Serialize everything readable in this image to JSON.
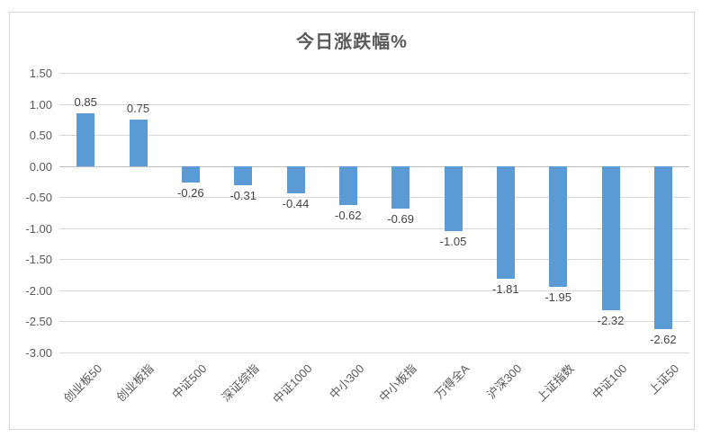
{
  "chart": {
    "title": "今日涨跌幅%"
  },
  "chart_data": {
    "type": "bar",
    "title": "今日涨跌幅%",
    "categories": [
      "创业板50",
      "创业板指",
      "中证500",
      "深证综指",
      "中证1000",
      "中小300",
      "中小板指",
      "万得全A",
      "沪深300",
      "上证指数",
      "中证100",
      "上证50"
    ],
    "values": [
      0.85,
      0.75,
      -0.26,
      -0.31,
      -0.44,
      -0.62,
      -0.69,
      -1.05,
      -1.81,
      -1.95,
      -2.32,
      -2.62
    ],
    "value_labels": [
      "0.85",
      "0.75",
      "-0.26",
      "-0.31",
      "-0.44",
      "-0.62",
      "-0.69",
      "-1.05",
      "-1.81",
      "-1.95",
      "-2.32",
      "-2.62"
    ],
    "y_ticks": [
      1.5,
      1.0,
      0.5,
      0.0,
      -0.5,
      -1.0,
      -1.5,
      -2.0,
      -2.5,
      -3.0
    ],
    "y_tick_labels": [
      "1.50",
      "1.00",
      "0.50",
      "0.00",
      "-0.50",
      "-1.00",
      "-1.50",
      "-2.00",
      "-2.50",
      "-3.00"
    ],
    "ylim": [
      -3.0,
      1.5
    ],
    "xlabel": "",
    "ylabel": "",
    "grid": true,
    "legend": false,
    "colors": {
      "bar": "#5B9BD5",
      "gridline": "#D9D9D9",
      "zero_axis": "#C0C0C0",
      "tick_label": "#595959",
      "value_label": "#444444",
      "title": "#595959",
      "frame_border": "#D7D7D7"
    }
  }
}
